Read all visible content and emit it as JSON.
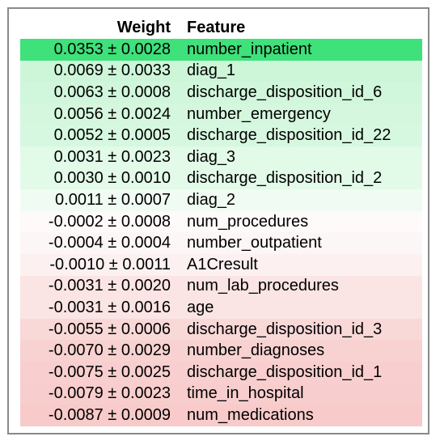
{
  "table": {
    "headers": {
      "weight": "Weight",
      "feature": "Feature"
    },
    "rows": [
      {
        "weight": "0.0353 ± 0.0028",
        "feature": "number_inpatient",
        "color": "#3ee17a"
      },
      {
        "weight": "0.0069 ± 0.0033",
        "feature": "diag_1",
        "color": "#cdf6d8"
      },
      {
        "weight": "0.0063 ± 0.0008",
        "feature": "discharge_disposition_id_6",
        "color": "#d0f7db"
      },
      {
        "weight": "0.0056 ± 0.0024",
        "feature": "number_emergency",
        "color": "#d4f7de"
      },
      {
        "weight": "0.0052 ± 0.0005",
        "feature": "discharge_disposition_id_22",
        "color": "#d7f8e0"
      },
      {
        "weight": "0.0031 ± 0.0023",
        "feature": "diag_3",
        "color": "#e2fae8"
      },
      {
        "weight": "0.0030 ± 0.0010",
        "feature": "discharge_disposition_id_2",
        "color": "#e3fae9"
      },
      {
        "weight": "0.0011 ± 0.0007",
        "feature": "diag_2",
        "color": "#f0fcf3"
      },
      {
        "weight": "-0.0002 ± 0.0008",
        "feature": "num_procedures",
        "color": "#fefafa"
      },
      {
        "weight": "-0.0004 ± 0.0004",
        "feature": "number_outpatient",
        "color": "#fdf6f6"
      },
      {
        "weight": "-0.0010 ± 0.0011",
        "feature": "A1Cresult",
        "color": "#fcf0f0"
      },
      {
        "weight": "-0.0031 ± 0.0020",
        "feature": "num_lab_procedures",
        "color": "#fbe4e4"
      },
      {
        "weight": "-0.0031 ± 0.0016",
        "feature": "age",
        "color": "#fbe4e4"
      },
      {
        "weight": "-0.0055 ± 0.0006",
        "feature": "discharge_disposition_id_3",
        "color": "#f9d8d8"
      },
      {
        "weight": "-0.0070 ± 0.0029",
        "feature": "number_diagnoses",
        "color": "#f8d1d1"
      },
      {
        "weight": "-0.0075 ± 0.0025",
        "feature": "discharge_disposition_id_1",
        "color": "#f8cece"
      },
      {
        "weight": "-0.0079 ± 0.0023",
        "feature": "time_in_hospital",
        "color": "#f8cdcd"
      },
      {
        "weight": "-0.0087 ± 0.0009",
        "feature": "num_medications",
        "color": "#f8caca"
      }
    ]
  }
}
